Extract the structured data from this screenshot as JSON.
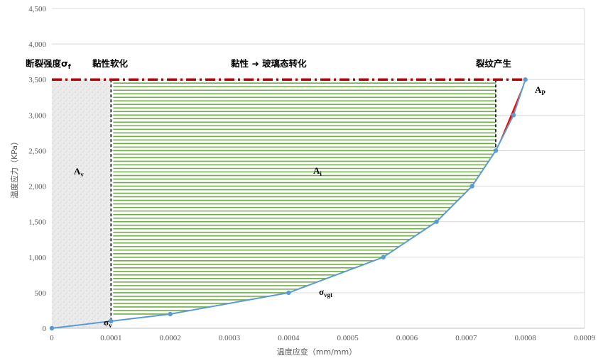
{
  "chart_data": {
    "type": "line",
    "xlabel": "温度应变（mm/mm）",
    "ylabel": "温度应力（KPa）",
    "xlim": [
      0,
      0.0009
    ],
    "ylim": [
      0,
      4500
    ],
    "x_ticks": [
      "0",
      "0.0001",
      "0.0002",
      "0.0003",
      "0.0004",
      "0.0005",
      "0.0006",
      "0.0007",
      "0.0008",
      "0.0009"
    ],
    "y_ticks": [
      "0",
      "500",
      "1,000",
      "1,500",
      "2,000",
      "2,500",
      "3,000",
      "3,500",
      "4,000",
      "4,500"
    ],
    "grid": "horizontal",
    "series": [
      {
        "x": [
          0,
          0.0001,
          0.0002,
          0.0004,
          0.00056,
          0.00065,
          0.00071,
          0.00075,
          0.00078,
          0.0008
        ],
        "y": [
          0,
          100,
          200,
          500,
          1000,
          1500,
          2000,
          2500,
          3000,
          3500
        ],
        "color": "#5B9BD5"
      }
    ],
    "fracture_strength": 3500,
    "softening_boundary_x": 0.0001,
    "crack_boundary_x": 0.00075,
    "colors": {
      "curve": "#5B9BD5",
      "fracture_line": "#C00000",
      "hatch": "#70AD47",
      "crack_region": "#FF0000",
      "softening_fill": "#E6E6E6",
      "grid": "#D9D9D9",
      "boundary": "#000000"
    },
    "annotations": {
      "fracture_strength": "断裂强度σ",
      "fracture_sub": "f",
      "viscous_softening": "黏性软化",
      "viscous_to_glass": "黏性 ➜ 玻璃态转化",
      "crack_generation": "裂纹产生",
      "area_v": "A",
      "area_v_sub": "v",
      "area_i": "A",
      "area_i_sub": "i",
      "area_p": "A",
      "area_p_sub": "P",
      "sigma_vgt": "σ",
      "sigma_vgt_sub": "vgt",
      "sigma_v": "σ",
      "sigma_v_sub": "v"
    }
  }
}
